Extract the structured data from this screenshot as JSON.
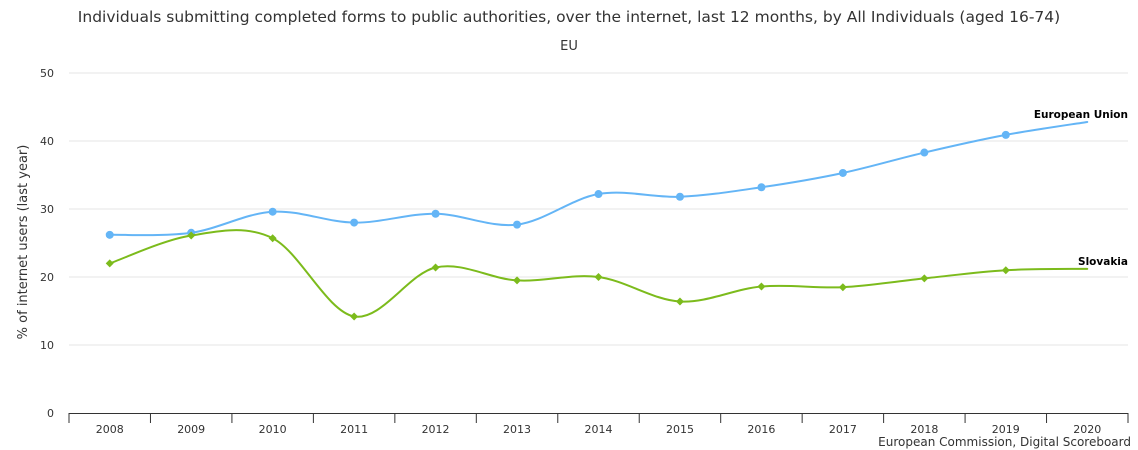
{
  "chart_data": {
    "type": "line",
    "title": "Individuals submitting completed forms to public authorities, over the internet, last 12 months, by All Individuals (aged 16-74)",
    "subtitle": "EU",
    "ylabel": "% of internet users (last year)",
    "xlabel": "",
    "ylim": [
      0,
      50
    ],
    "yticks": [
      0,
      10,
      20,
      30,
      40,
      50
    ],
    "grid": true,
    "x": [
      "2008",
      "2009",
      "2010",
      "2011",
      "2012",
      "2013",
      "2014",
      "2015",
      "2016",
      "2017",
      "2018",
      "2019",
      "2020"
    ],
    "series": [
      {
        "name": "European Union",
        "color": "#64b5f6",
        "marker": "circle",
        "values": [
          26.2,
          26.5,
          29.6,
          28.0,
          29.3,
          27.7,
          32.2,
          31.8,
          33.2,
          35.3,
          38.3,
          40.9,
          42.8
        ]
      },
      {
        "name": "Slovakia",
        "color": "#7cbb1c",
        "marker": "diamond",
        "values": [
          22.0,
          26.1,
          25.7,
          14.2,
          21.4,
          19.5,
          20.0,
          16.4,
          18.6,
          18.5,
          19.8,
          21.0,
          21.2
        ]
      }
    ],
    "credit": "European Commission, Digital Scoreboard"
  }
}
